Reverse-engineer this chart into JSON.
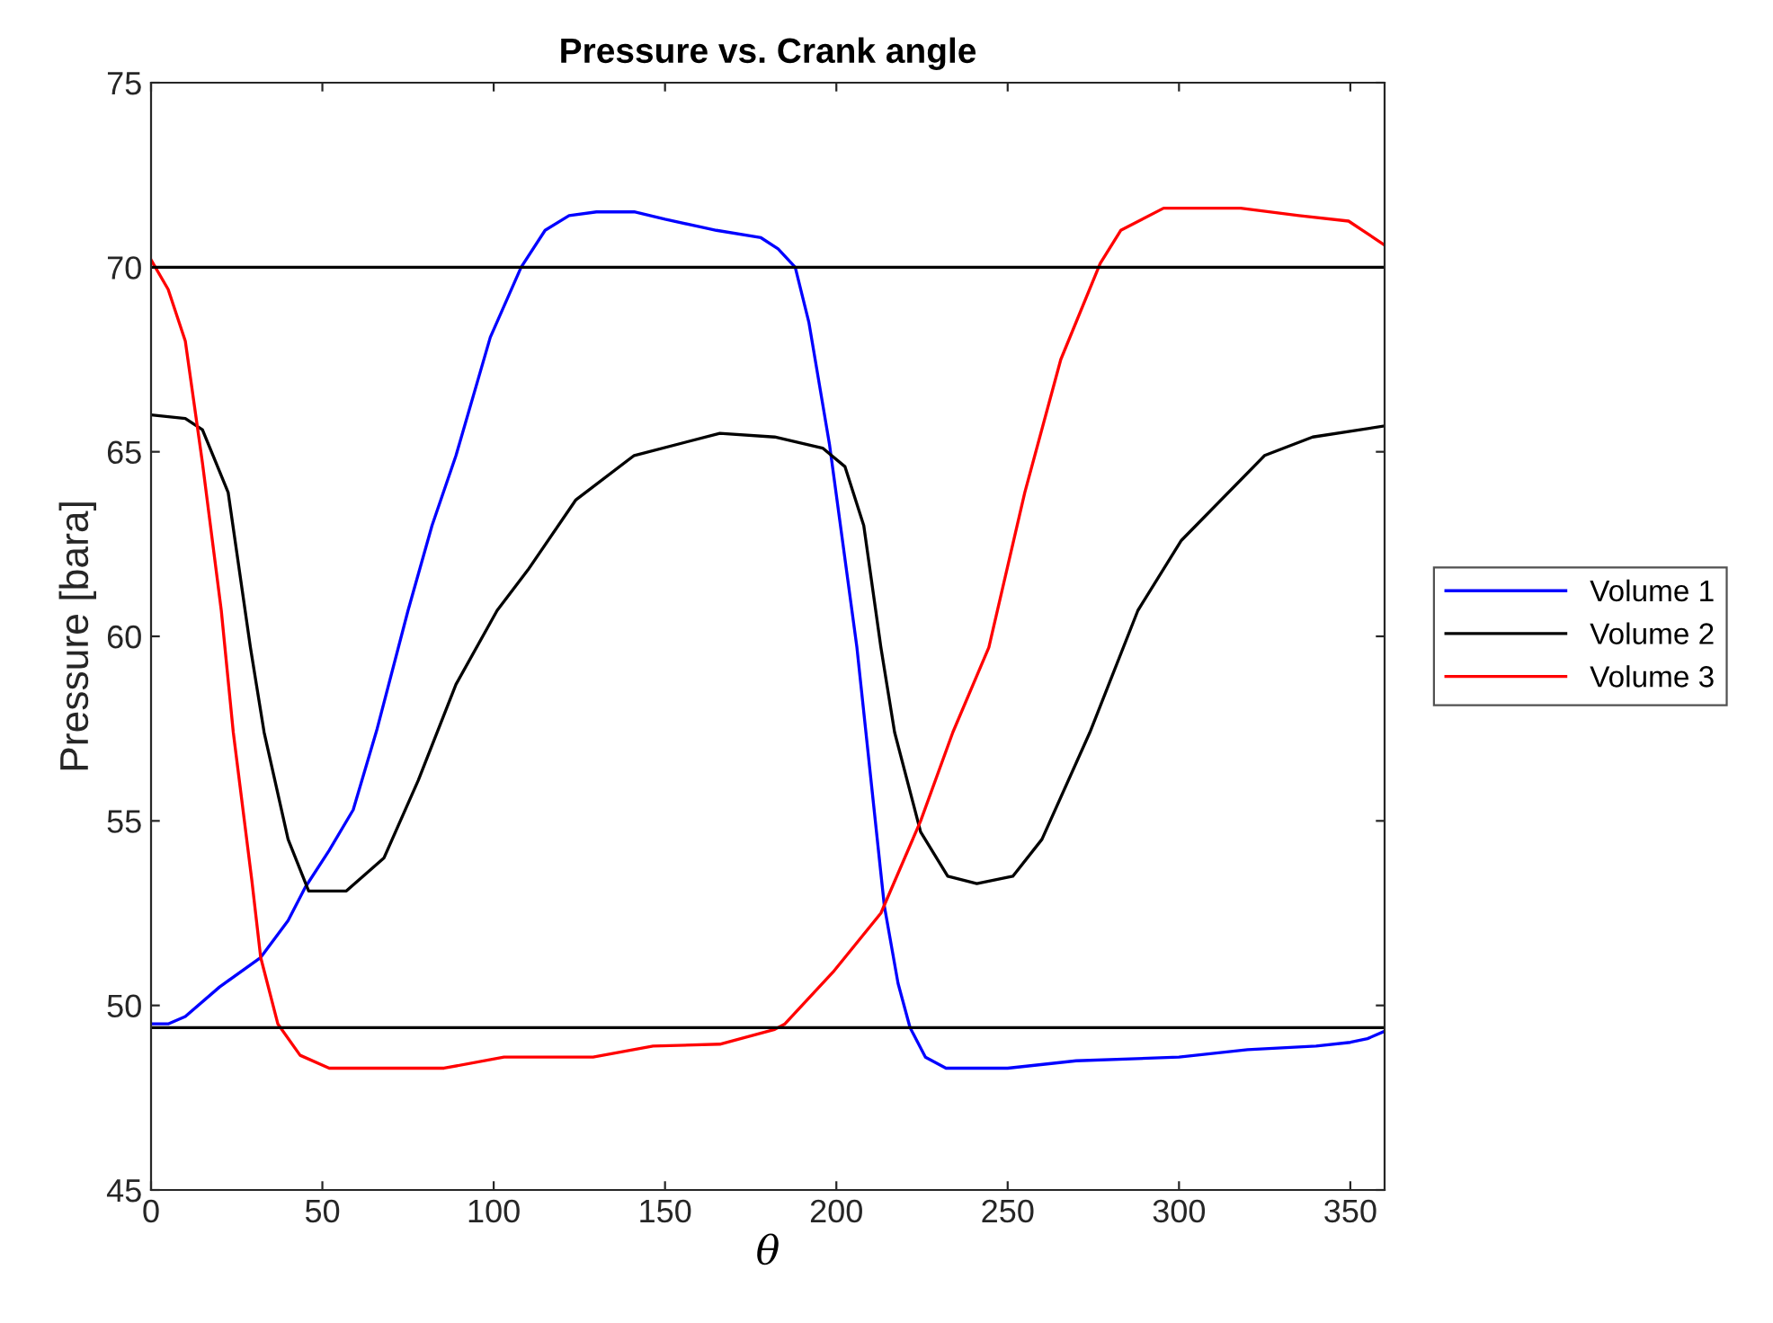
{
  "chart_data": {
    "type": "line",
    "title": "Pressure vs. Crank angle",
    "xlabel": "θ",
    "ylabel": "Pressure [bara]",
    "xlim": [
      0,
      360
    ],
    "xticks": [
      0,
      50,
      100,
      150,
      200,
      250,
      300,
      350
    ],
    "ylim": [
      45,
      75
    ],
    "yticks": [
      45,
      50,
      55,
      60,
      65,
      70,
      75
    ],
    "grid": false,
    "legend": "right",
    "marker": "none",
    "line_style": "solid",
    "ref_lines": [
      {
        "axis": "y",
        "value": 70,
        "color": "#000000"
      },
      {
        "axis": "y",
        "value": 49.4,
        "color": "#000000"
      }
    ],
    "series": [
      {
        "name": "Volume 1",
        "color": "#0000ff",
        "x": [
          0,
          5,
          10,
          20,
          32,
          40,
          45,
          52,
          59,
          66,
          75,
          82,
          89,
          99,
          108,
          115,
          122,
          130,
          141,
          150,
          165,
          178,
          183,
          188,
          192,
          198,
          206,
          214,
          218,
          221.5,
          226,
          232,
          250,
          270,
          300,
          320,
          340,
          350,
          355,
          360
        ],
        "values": [
          49.5,
          49.5,
          49.7,
          50.5,
          51.3,
          52.3,
          53.2,
          54.2,
          55.3,
          57.5,
          60.7,
          63,
          64.9,
          68.1,
          70.0,
          71.0,
          71.4,
          71.5,
          71.5,
          71.3,
          71.0,
          70.8,
          70.5,
          70,
          68.5,
          65.2,
          59.7,
          52.7,
          50.6,
          49.4,
          48.6,
          48.3,
          48.3,
          48.5,
          48.6,
          48.8,
          48.9,
          49.0,
          49.1,
          49.3
        ]
      },
      {
        "name": "Volume 2",
        "color": "#000000",
        "x": [
          0,
          10,
          15,
          22.5,
          29,
          33,
          40,
          46,
          57,
          68,
          78,
          89,
          101,
          110,
          124,
          141,
          166,
          182,
          196,
          202.5,
          208,
          213,
          217,
          224.6,
          232.5,
          241,
          251.5,
          260,
          274,
          288,
          300.7,
          325,
          339,
          360
        ],
        "values": [
          66.0,
          65.9,
          65.6,
          63.9,
          59.7,
          57.4,
          54.5,
          53.1,
          53.1,
          54.0,
          56.1,
          58.7,
          60.7,
          61.8,
          63.7,
          64.9,
          65.5,
          65.4,
          65.1,
          64.6,
          63,
          59.7,
          57.4,
          54.7,
          53.5,
          53.3,
          53.5,
          54.5,
          57.4,
          60.7,
          62.6,
          64.9,
          65.4,
          65.7
        ]
      },
      {
        "name": "Volume 3",
        "color": "#ff0000",
        "x": [
          0,
          5,
          10,
          15,
          20.5,
          24,
          29.4,
          32,
          37,
          43.5,
          52,
          85.5,
          103,
          129,
          146.5,
          166,
          182,
          185,
          199,
          213,
          224.6,
          234,
          244.5,
          255,
          265.5,
          277,
          283,
          295.5,
          318,
          335,
          349.5,
          360
        ],
        "values": [
          70.2,
          69.4,
          68,
          64.7,
          60.7,
          57.4,
          53.4,
          51.3,
          49.5,
          48.65,
          48.3,
          48.3,
          48.6,
          48.6,
          48.9,
          48.95,
          49.35,
          49.5,
          50.9,
          52.5,
          55.0,
          57.4,
          59.7,
          63.9,
          67.5,
          70.1,
          71.0,
          71.6,
          71.6,
          71.4,
          71.25,
          70.6
        ]
      }
    ]
  }
}
